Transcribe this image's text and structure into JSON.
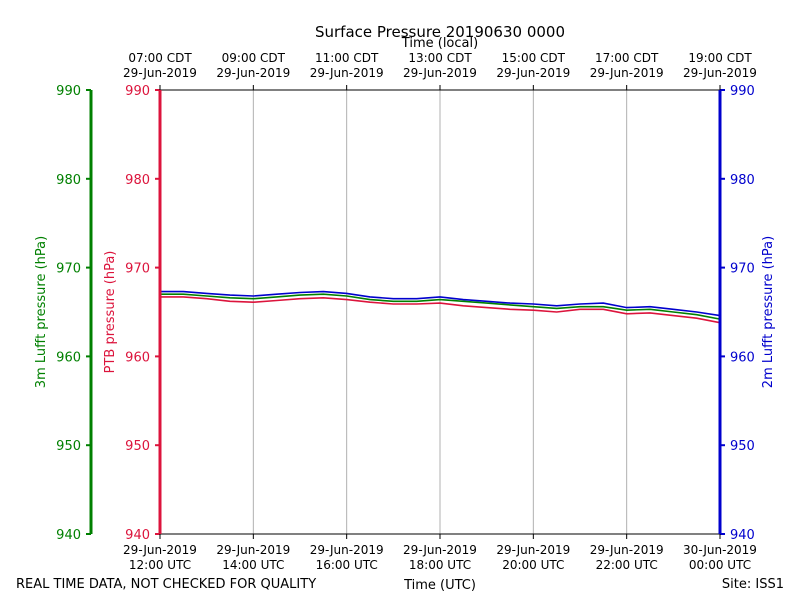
{
  "chart_data": {
    "type": "line",
    "title": "Surface Pressure 20190630 0000",
    "top_axis_label": "Time (local)",
    "xlabel": "Time (UTC)",
    "x_utc_hours": [
      12,
      14,
      16,
      18,
      20,
      22,
      24
    ],
    "bottom_ticks": [
      {
        "date": "29-Jun-2019",
        "time": "12:00 UTC"
      },
      {
        "date": "29-Jun-2019",
        "time": "14:00 UTC"
      },
      {
        "date": "29-Jun-2019",
        "time": "16:00 UTC"
      },
      {
        "date": "29-Jun-2019",
        "time": "18:00 UTC"
      },
      {
        "date": "29-Jun-2019",
        "time": "20:00 UTC"
      },
      {
        "date": "29-Jun-2019",
        "time": "22:00 UTC"
      },
      {
        "date": "30-Jun-2019",
        "time": "00:00 UTC"
      }
    ],
    "top_ticks": [
      {
        "time": "07:00 CDT",
        "date": "29-Jun-2019"
      },
      {
        "time": "09:00 CDT",
        "date": "29-Jun-2019"
      },
      {
        "time": "11:00 CDT",
        "date": "29-Jun-2019"
      },
      {
        "time": "13:00 CDT",
        "date": "29-Jun-2019"
      },
      {
        "time": "15:00 CDT",
        "date": "29-Jun-2019"
      },
      {
        "time": "17:00 CDT",
        "date": "29-Jun-2019"
      },
      {
        "time": "19:00 CDT",
        "date": "29-Jun-2019"
      }
    ],
    "ylim": [
      940,
      990
    ],
    "yticks": [
      "940",
      "950",
      "960",
      "970",
      "980",
      "990"
    ],
    "axes": [
      {
        "label": "3m Lufft pressure (hPa)",
        "color": "#008000",
        "side": "left-outer"
      },
      {
        "label": "PTB pressure (hPa)",
        "color": "#dc143c",
        "side": "left-inner"
      },
      {
        "label": "2m Lufft pressure (hPa)",
        "color": "#0000cd",
        "side": "right"
      }
    ],
    "grid": true,
    "series": [
      {
        "color": "#008000",
        "x": [
          12.0,
          12.5,
          13.0,
          13.5,
          14.0,
          14.5,
          15.0,
          15.5,
          16.0,
          16.5,
          17.0,
          17.5,
          18.0,
          18.5,
          19.0,
          19.5,
          20.0,
          20.5,
          21.0,
          21.5,
          22.0,
          22.5,
          23.0,
          23.5,
          24.0
        ],
        "y": [
          967.0,
          967.0,
          966.8,
          966.6,
          966.5,
          966.7,
          966.9,
          967.0,
          966.8,
          966.4,
          966.2,
          966.2,
          966.4,
          966.2,
          966.0,
          965.8,
          965.6,
          965.4,
          965.6,
          965.6,
          965.2,
          965.3,
          965.0,
          964.7,
          964.2
        ]
      },
      {
        "color": "#dc143c",
        "x": [
          12.0,
          12.5,
          13.0,
          13.5,
          14.0,
          14.5,
          15.0,
          15.5,
          16.0,
          16.5,
          17.0,
          17.5,
          18.0,
          18.5,
          19.0,
          19.5,
          20.0,
          20.5,
          21.0,
          21.5,
          22.0,
          22.5,
          23.0,
          23.5,
          24.0
        ],
        "y": [
          966.7,
          966.7,
          966.5,
          966.2,
          966.1,
          966.3,
          966.5,
          966.6,
          966.4,
          966.1,
          965.9,
          965.9,
          966.0,
          965.7,
          965.5,
          965.3,
          965.2,
          965.0,
          965.3,
          965.3,
          964.8,
          964.9,
          964.6,
          964.3,
          963.8
        ]
      },
      {
        "color": "#0000cd",
        "x": [
          12.0,
          12.5,
          13.0,
          13.5,
          14.0,
          14.5,
          15.0,
          15.5,
          16.0,
          16.5,
          17.0,
          17.5,
          18.0,
          18.5,
          19.0,
          19.5,
          20.0,
          20.5,
          21.0,
          21.5,
          22.0,
          22.5,
          23.0,
          23.5,
          24.0
        ],
        "y": [
          967.3,
          967.3,
          967.1,
          966.9,
          966.8,
          967.0,
          967.2,
          967.3,
          967.1,
          966.7,
          966.5,
          966.5,
          966.7,
          966.4,
          966.2,
          966.0,
          965.9,
          965.7,
          965.9,
          966.0,
          965.5,
          965.6,
          965.3,
          965.0,
          964.6
        ]
      }
    ]
  },
  "footer": {
    "left": "REAL TIME DATA, NOT CHECKED FOR QUALITY",
    "right": "Site: ISS1"
  }
}
